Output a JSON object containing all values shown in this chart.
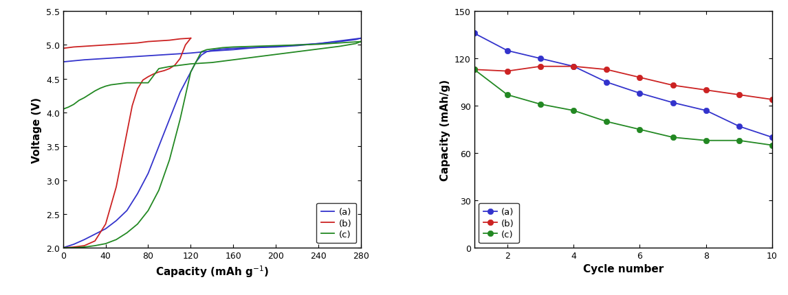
{
  "left_plot": {
    "xlabel": "Capacity (mAh g$^{-1}$)",
    "ylabel": "Voltage (V)",
    "xlim": [
      0,
      280
    ],
    "ylim": [
      2.0,
      5.5
    ],
    "xticks": [
      0,
      40,
      80,
      120,
      160,
      200,
      240,
      280
    ],
    "yticks": [
      2.0,
      2.5,
      3.0,
      3.5,
      4.0,
      4.5,
      5.0,
      5.5
    ],
    "series": {
      "a": {
        "color": "#3333cc",
        "charge_x": [
          0,
          20,
          40,
          60,
          80,
          100,
          120,
          140,
          160,
          180,
          200,
          220,
          240,
          260,
          275,
          280
        ],
        "charge_y": [
          4.75,
          4.78,
          4.8,
          4.82,
          4.84,
          4.86,
          4.88,
          4.91,
          4.93,
          4.96,
          4.98,
          5.0,
          5.02,
          5.05,
          5.08,
          5.1
        ],
        "discharge_x": [
          280,
          270,
          260,
          250,
          240,
          220,
          200,
          180,
          160,
          150,
          145,
          140,
          135,
          130,
          125,
          120,
          110,
          100,
          90,
          80,
          70,
          60,
          50,
          40,
          30,
          20,
          10,
          0
        ],
        "discharge_y": [
          5.1,
          5.08,
          5.06,
          5.04,
          5.02,
          4.99,
          4.97,
          4.96,
          4.95,
          4.94,
          4.93,
          4.92,
          4.9,
          4.85,
          4.75,
          4.6,
          4.3,
          3.9,
          3.5,
          3.1,
          2.8,
          2.55,
          2.4,
          2.28,
          2.2,
          2.12,
          2.05,
          2.0
        ]
      },
      "b": {
        "color": "#cc2222",
        "charge_x": [
          0,
          5,
          10,
          20,
          30,
          40,
          50,
          60,
          70,
          80,
          90,
          100,
          110,
          120
        ],
        "charge_y": [
          4.95,
          4.96,
          4.97,
          4.98,
          4.99,
          5.0,
          5.01,
          5.02,
          5.03,
          5.05,
          5.06,
          5.07,
          5.09,
          5.1
        ],
        "discharge_x": [
          120,
          115,
          110,
          105,
          100,
          95,
          90,
          85,
          80,
          75,
          70,
          65,
          60,
          50,
          40,
          30,
          20,
          10,
          0
        ],
        "discharge_y": [
          5.1,
          5.0,
          4.8,
          4.7,
          4.65,
          4.62,
          4.6,
          4.57,
          4.53,
          4.48,
          4.35,
          4.1,
          3.7,
          2.9,
          2.35,
          2.1,
          2.03,
          2.01,
          2.0
        ]
      },
      "c": {
        "color": "#228822",
        "charge_x": [
          0,
          5,
          10,
          15,
          20,
          25,
          30,
          35,
          40,
          45,
          50,
          55,
          60,
          65,
          70,
          75,
          80,
          90,
          100,
          110,
          120,
          130,
          140,
          160,
          180,
          200,
          220,
          240,
          260,
          275,
          280
        ],
        "charge_y": [
          4.05,
          4.08,
          4.12,
          4.18,
          4.22,
          4.27,
          4.32,
          4.36,
          4.39,
          4.41,
          4.42,
          4.43,
          4.44,
          4.44,
          4.44,
          4.44,
          4.44,
          4.65,
          4.68,
          4.7,
          4.72,
          4.73,
          4.74,
          4.78,
          4.82,
          4.86,
          4.9,
          4.94,
          4.98,
          5.02,
          5.05
        ],
        "discharge_x": [
          280,
          270,
          260,
          250,
          240,
          220,
          200,
          180,
          160,
          150,
          145,
          140,
          135,
          130,
          120,
          110,
          100,
          90,
          80,
          70,
          60,
          50,
          40,
          30,
          20,
          10,
          0
        ],
        "discharge_y": [
          5.05,
          5.04,
          5.03,
          5.02,
          5.01,
          5.0,
          4.99,
          4.98,
          4.97,
          4.96,
          4.95,
          4.94,
          4.93,
          4.9,
          4.6,
          3.9,
          3.3,
          2.85,
          2.55,
          2.35,
          2.22,
          2.12,
          2.06,
          2.03,
          2.01,
          2.0,
          2.0
        ]
      }
    },
    "legend_labels": [
      "(a)",
      "(b)",
      "(c)"
    ],
    "legend_colors": [
      "#3333cc",
      "#cc2222",
      "#228822"
    ]
  },
  "right_plot": {
    "xlabel": "Cycle number",
    "ylabel": "Capacity (mAh/g)",
    "xlim": [
      1,
      10
    ],
    "ylim": [
      0,
      150
    ],
    "xticks": [
      2,
      4,
      6,
      8,
      10
    ],
    "yticks": [
      0,
      30,
      60,
      90,
      120,
      150
    ],
    "series": {
      "a": {
        "color": "#3333cc",
        "x": [
          1,
          2,
          3,
          4,
          5,
          6,
          7,
          8,
          9,
          10
        ],
        "y": [
          136,
          125,
          120,
          115,
          105,
          98,
          92,
          87,
          77,
          70
        ]
      },
      "b": {
        "color": "#cc2222",
        "x": [
          1,
          2,
          3,
          4,
          5,
          6,
          7,
          8,
          9,
          10
        ],
        "y": [
          113,
          112,
          115,
          115,
          113,
          108,
          103,
          100,
          97,
          94
        ]
      },
      "c": {
        "color": "#228822",
        "x": [
          1,
          2,
          3,
          4,
          5,
          6,
          7,
          8,
          9,
          10
        ],
        "y": [
          113,
          97,
          91,
          87,
          80,
          75,
          70,
          68,
          68,
          65
        ]
      }
    },
    "legend_labels": [
      "(a)",
      "(b)",
      "(c)"
    ],
    "legend_colors": [
      "#3333cc",
      "#cc2222",
      "#228822"
    ]
  }
}
